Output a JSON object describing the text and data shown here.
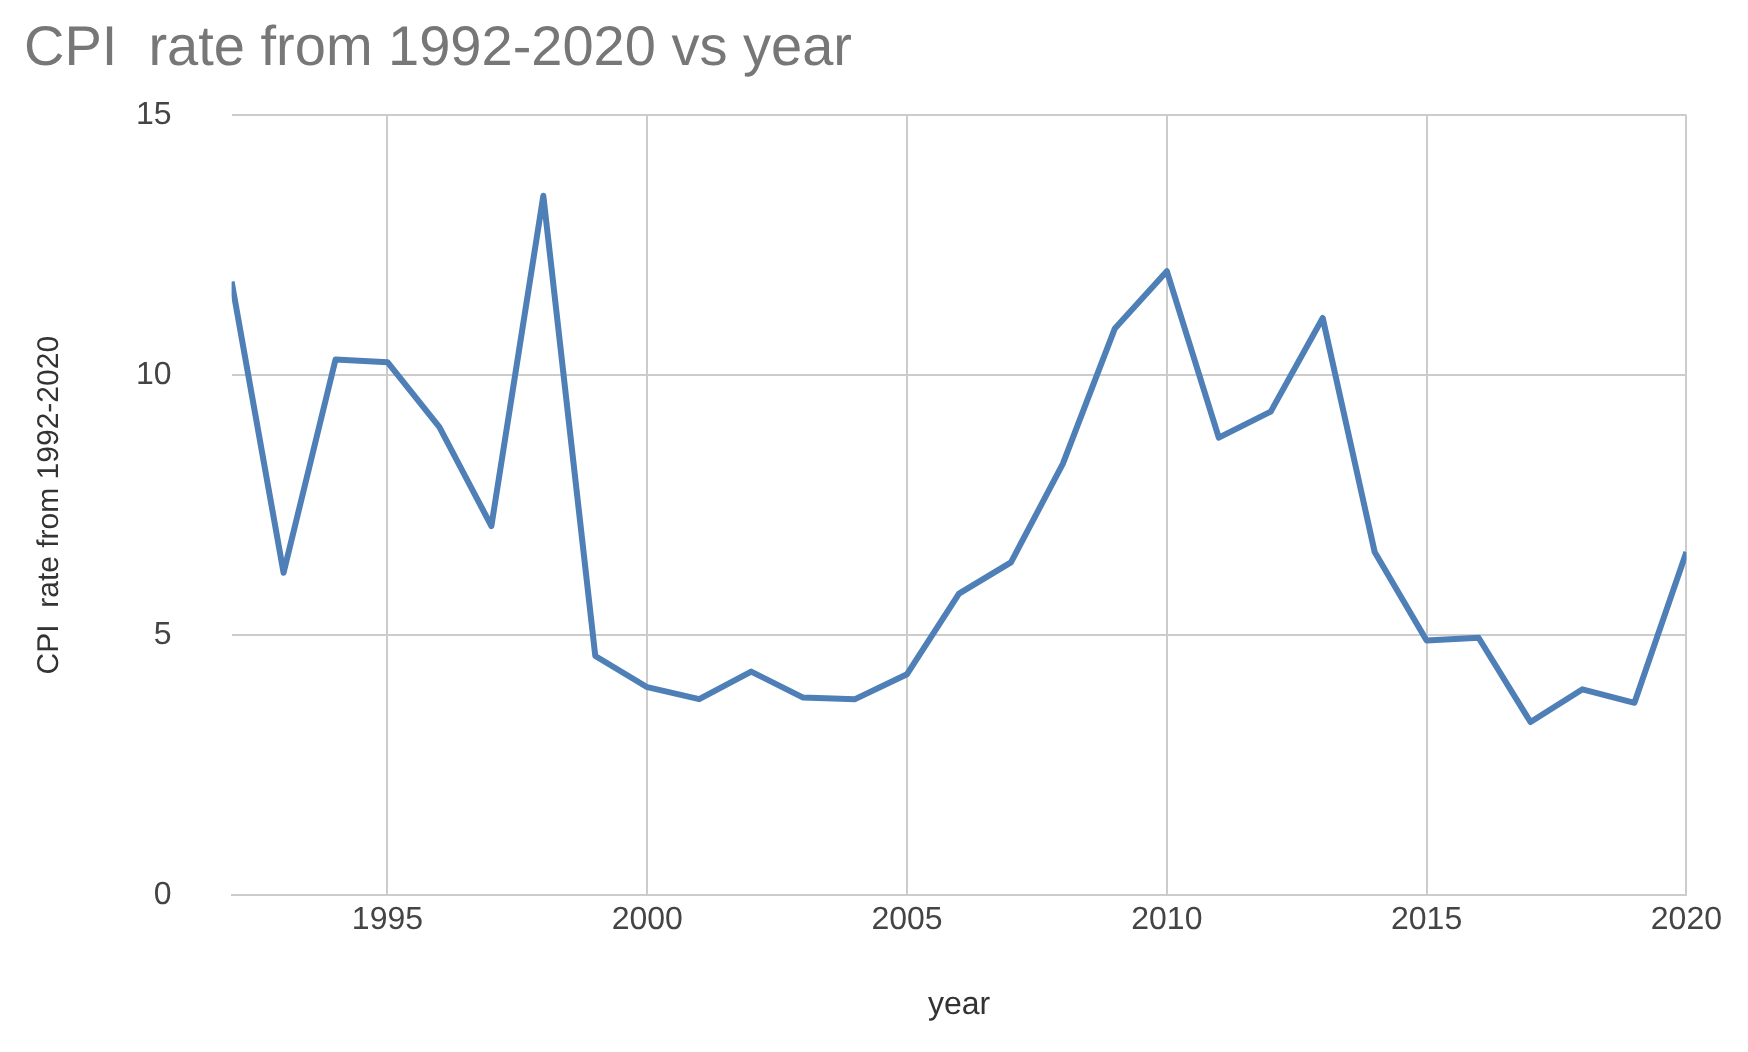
{
  "chart_data": {
    "type": "line",
    "title": "CPI  rate from 1992-2020 vs year",
    "xlabel": "year",
    "ylabel": "CPI  rate from 1992-2020",
    "x": [
      1992,
      1993,
      1994,
      1995,
      1996,
      1997,
      1998,
      1999,
      2000,
      2001,
      2002,
      2003,
      2004,
      2005,
      2006,
      2007,
      2008,
      2009,
      2010,
      2011,
      2012,
      2013,
      2014,
      2015,
      2016,
      2017,
      2018,
      2019,
      2020
    ],
    "series": [
      {
        "color": "#4f7fb7",
        "values": [
          11.8,
          6.2,
          10.3,
          10.25,
          9.0,
          7.1,
          13.45,
          4.6,
          4.0,
          3.77,
          4.3,
          3.8,
          3.77,
          4.25,
          5.8,
          6.4,
          8.3,
          10.9,
          12.0,
          8.8,
          9.3,
          11.1,
          6.6,
          4.9,
          4.95,
          3.33,
          3.96,
          3.7,
          6.6
        ]
      }
    ],
    "xlim": [
      1992,
      2020
    ],
    "xticks": [
      1995,
      2000,
      2005,
      2010,
      2015,
      2020
    ],
    "ylim": [
      0,
      15
    ],
    "yticks": [
      0,
      5,
      10,
      15
    ],
    "grid": true,
    "legend": false,
    "marker": "none",
    "line_style": "solid"
  }
}
